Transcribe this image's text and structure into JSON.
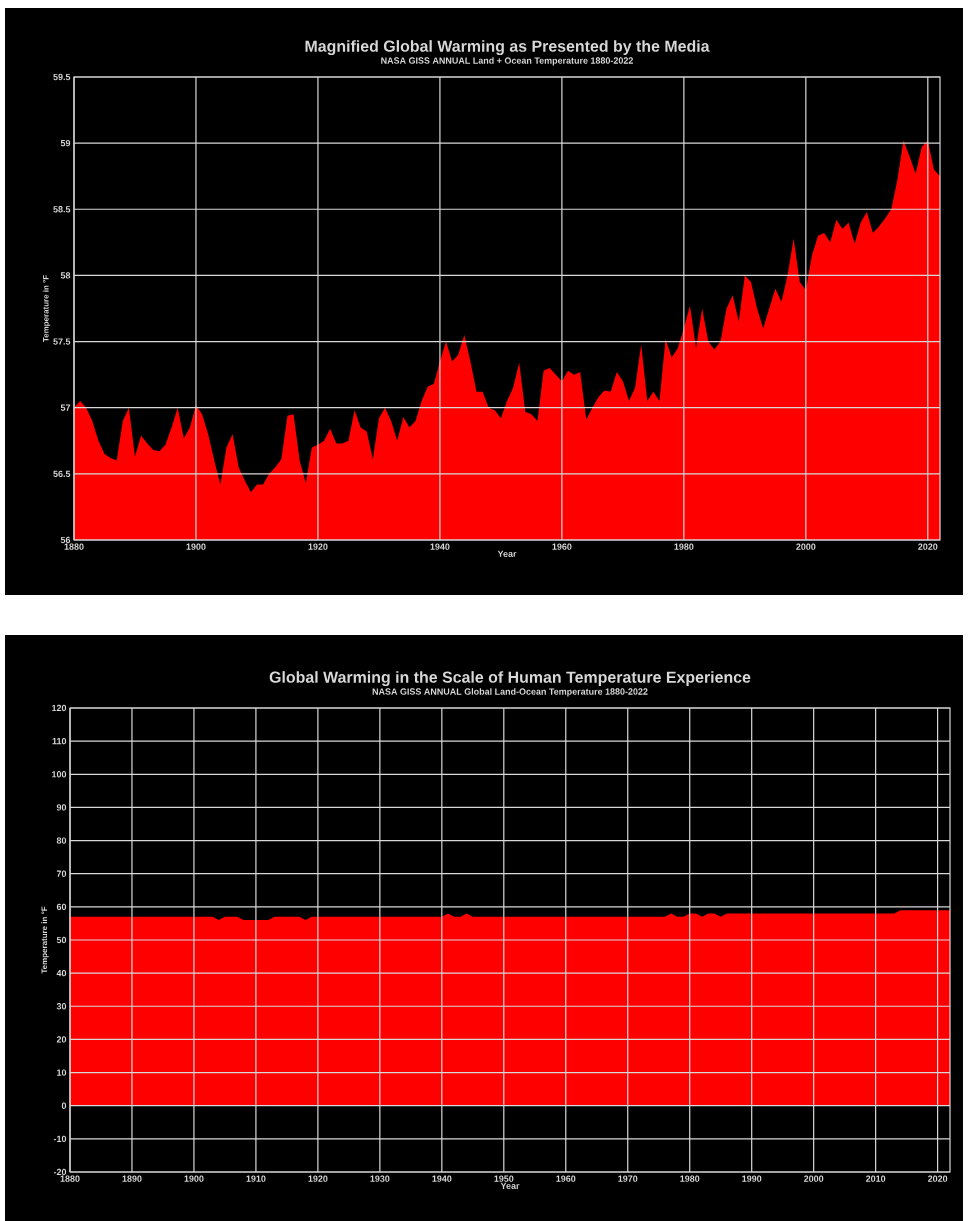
{
  "chart_data": [
    {
      "type": "area",
      "title": "Magnified Global Warming as Presented by the Media",
      "subtitle": "NASA GISS ANNUAL Land + Ocean Temperature 1880-2022",
      "xlabel": "Year",
      "ylabel": "Temperature in °F",
      "color": "#ff0000",
      "grid": true,
      "x": [
        1880,
        1881,
        1882,
        1883,
        1884,
        1885,
        1886,
        1887,
        1888,
        1889,
        1890,
        1891,
        1892,
        1893,
        1894,
        1895,
        1896,
        1897,
        1898,
        1899,
        1900,
        1901,
        1902,
        1903,
        1904,
        1905,
        1906,
        1907,
        1908,
        1909,
        1910,
        1911,
        1912,
        1913,
        1914,
        1915,
        1916,
        1917,
        1918,
        1919,
        1920,
        1921,
        1922,
        1923,
        1924,
        1925,
        1926,
        1927,
        1928,
        1929,
        1930,
        1931,
        1932,
        1933,
        1934,
        1935,
        1936,
        1937,
        1938,
        1939,
        1940,
        1941,
        1942,
        1943,
        1944,
        1945,
        1946,
        1947,
        1948,
        1949,
        1950,
        1951,
        1952,
        1953,
        1954,
        1955,
        1956,
        1957,
        1958,
        1959,
        1960,
        1961,
        1962,
        1963,
        1964,
        1965,
        1966,
        1967,
        1968,
        1969,
        1970,
        1971,
        1972,
        1973,
        1974,
        1975,
        1976,
        1977,
        1978,
        1979,
        1980,
        1981,
        1982,
        1983,
        1984,
        1985,
        1986,
        1987,
        1988,
        1989,
        1990,
        1991,
        1992,
        1993,
        1994,
        1995,
        1996,
        1997,
        1998,
        1999,
        2000,
        2001,
        2002,
        2003,
        2004,
        2005,
        2006,
        2007,
        2008,
        2009,
        2010,
        2011,
        2012,
        2013,
        2014,
        2015,
        2016,
        2017,
        2018,
        2019,
        2020,
        2021,
        2022
      ],
      "values": [
        57.0,
        57.05,
        57.0,
        56.9,
        56.75,
        56.65,
        56.62,
        56.6,
        56.9,
        57.0,
        56.63,
        56.79,
        56.73,
        56.68,
        56.67,
        56.72,
        56.85,
        57.0,
        56.77,
        56.85,
        57.02,
        56.95,
        56.8,
        56.6,
        56.42,
        56.7,
        56.8,
        56.55,
        56.45,
        56.36,
        56.42,
        56.42,
        56.5,
        56.55,
        56.61,
        56.94,
        56.95,
        56.6,
        56.43,
        56.7,
        56.72,
        56.75,
        56.84,
        56.73,
        56.73,
        56.75,
        56.98,
        56.85,
        56.82,
        56.61,
        56.92,
        57.0,
        56.9,
        56.75,
        56.93,
        56.85,
        56.9,
        57.05,
        57.16,
        57.18,
        57.35,
        57.5,
        57.35,
        57.4,
        57.55,
        57.35,
        57.12,
        57.12,
        57.0,
        56.98,
        56.92,
        57.05,
        57.15,
        57.34,
        56.97,
        56.95,
        56.9,
        57.28,
        57.3,
        57.25,
        57.2,
        57.28,
        57.25,
        57.27,
        56.91,
        57.0,
        57.08,
        57.13,
        57.12,
        57.27,
        57.2,
        57.05,
        57.15,
        57.48,
        57.05,
        57.12,
        57.05,
        57.52,
        57.38,
        57.45,
        57.6,
        57.77,
        57.45,
        57.75,
        57.5,
        57.44,
        57.5,
        57.75,
        57.85,
        57.65,
        58.0,
        57.95,
        57.75,
        57.6,
        57.75,
        57.9,
        57.8,
        58.0,
        58.28,
        57.95,
        57.89,
        58.15,
        58.3,
        58.32,
        58.25,
        58.42,
        58.35,
        58.4,
        58.24,
        58.4,
        58.48,
        58.32,
        58.37,
        58.43,
        58.5,
        58.72,
        59.02,
        58.9,
        58.77,
        58.97,
        59.02,
        58.8,
        58.75
      ],
      "xlim": [
        1880,
        2022
      ],
      "ylim": [
        56,
        59.5
      ],
      "xticks": [
        1880,
        1900,
        1920,
        1940,
        1960,
        1980,
        2000,
        2020
      ],
      "yticks": [
        56,
        56.5,
        57,
        57.5,
        58,
        58.5,
        59,
        59.5
      ]
    },
    {
      "type": "area",
      "title": "Global Warming in the Scale of Human Temperature Experience",
      "subtitle": "NASA GISS ANNUAL Global Land-Ocean Temperature 1880-2022",
      "xlabel": "Year",
      "ylabel": "Temperature in °F",
      "color": "#ff0000",
      "grid": true,
      "x": [
        1880,
        1881,
        1882,
        1883,
        1884,
        1885,
        1886,
        1887,
        1888,
        1889,
        1890,
        1891,
        1892,
        1893,
        1894,
        1895,
        1896,
        1897,
        1898,
        1899,
        1900,
        1901,
        1902,
        1903,
        1904,
        1905,
        1906,
        1907,
        1908,
        1909,
        1910,
        1911,
        1912,
        1913,
        1914,
        1915,
        1916,
        1917,
        1918,
        1919,
        1920,
        1921,
        1922,
        1923,
        1924,
        1925,
        1926,
        1927,
        1928,
        1929,
        1930,
        1931,
        1932,
        1933,
        1934,
        1935,
        1936,
        1937,
        1938,
        1939,
        1940,
        1941,
        1942,
        1943,
        1944,
        1945,
        1946,
        1947,
        1948,
        1949,
        1950,
        1951,
        1952,
        1953,
        1954,
        1955,
        1956,
        1957,
        1958,
        1959,
        1960,
        1961,
        1962,
        1963,
        1964,
        1965,
        1966,
        1967,
        1968,
        1969,
        1970,
        1971,
        1972,
        1973,
        1974,
        1975,
        1976,
        1977,
        1978,
        1979,
        1980,
        1981,
        1982,
        1983,
        1984,
        1985,
        1986,
        1987,
        1988,
        1989,
        1990,
        1991,
        1992,
        1993,
        1994,
        1995,
        1996,
        1997,
        1998,
        1999,
        2000,
        2001,
        2002,
        2003,
        2004,
        2005,
        2006,
        2007,
        2008,
        2009,
        2010,
        2011,
        2012,
        2013,
        2014,
        2015,
        2016,
        2017,
        2018,
        2019,
        2020,
        2021,
        2022
      ],
      "values": [
        57,
        57,
        57,
        57,
        57,
        57,
        57,
        57,
        57,
        57,
        57,
        57,
        57,
        57,
        57,
        57,
        57,
        57,
        57,
        57,
        57,
        57,
        57,
        57,
        56,
        57,
        57,
        57,
        56,
        56,
        56,
        56,
        56,
        57,
        57,
        57,
        57,
        57,
        56,
        57,
        57,
        57,
        57,
        57,
        57,
        57,
        57,
        57,
        57,
        57,
        57,
        57,
        57,
        57,
        57,
        57,
        57,
        57,
        57,
        57,
        57,
        58,
        57,
        57,
        58,
        57,
        57,
        57,
        57,
        57,
        57,
        57,
        57,
        57,
        57,
        57,
        57,
        57,
        57,
        57,
        57,
        57,
        57,
        57,
        57,
        57,
        57,
        57,
        57,
        57,
        57,
        57,
        57,
        57,
        57,
        57,
        57,
        58,
        57,
        57,
        58,
        58,
        57,
        58,
        58,
        57,
        58,
        58,
        58,
        58,
        58,
        58,
        58,
        58,
        58,
        58,
        58,
        58,
        58,
        58,
        58,
        58,
        58,
        58,
        58,
        58,
        58,
        58,
        58,
        58,
        58,
        58,
        58,
        58,
        59,
        59,
        59,
        59,
        59,
        59,
        59,
        59,
        59
      ],
      "xlim": [
        1880,
        2022
      ],
      "ylim": [
        -20,
        120
      ],
      "xticks": [
        1880,
        1890,
        1900,
        1910,
        1920,
        1930,
        1940,
        1950,
        1960,
        1970,
        1980,
        1990,
        2000,
        2010,
        2020
      ],
      "yticks": [
        -20,
        -10,
        0,
        10,
        20,
        30,
        40,
        50,
        60,
        70,
        80,
        90,
        100,
        110,
        120
      ]
    }
  ]
}
